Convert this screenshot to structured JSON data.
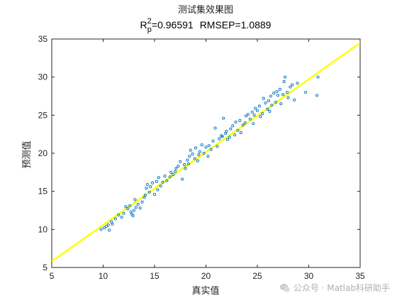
{
  "chart_data": {
    "type": "scatter",
    "title": "测试集效果图",
    "subtitle": {
      "r_symbol": "R",
      "r_sup": "2",
      "r_sub": "p",
      "r_value_text": "=0.96591",
      "rmsep_text": "RMSEP=1.0889"
    },
    "xlabel": "真实值",
    "ylabel": "预测值",
    "xlim": [
      5,
      35
    ],
    "ylim": [
      5,
      35
    ],
    "xticks": [
      5,
      10,
      15,
      20,
      25,
      30,
      35
    ],
    "yticks": [
      5,
      10,
      15,
      20,
      25,
      30,
      35
    ],
    "grid": false,
    "fit_line": {
      "x": [
        5,
        35
      ],
      "y": [
        5.8,
        34.5
      ],
      "color": "#ffff00"
    },
    "marker_color": "#0072bd",
    "points": [
      [
        9.8,
        10.0
      ],
      [
        10.1,
        10.2
      ],
      [
        10.3,
        10.4
      ],
      [
        10.5,
        10.6
      ],
      [
        10.8,
        11.0
      ],
      [
        10.6,
        9.9
      ],
      [
        11.2,
        11.4
      ],
      [
        11.5,
        11.9
      ],
      [
        11.8,
        11.6
      ],
      [
        12.0,
        12.1
      ],
      [
        12.2,
        13.0
      ],
      [
        12.4,
        12.7
      ],
      [
        12.6,
        13.1
      ],
      [
        12.8,
        12.0
      ],
      [
        12.9,
        11.8
      ],
      [
        13.0,
        12.5
      ],
      [
        13.2,
        12.9
      ],
      [
        13.4,
        13.3
      ],
      [
        13.6,
        12.8
      ],
      [
        13.8,
        13.6
      ],
      [
        14.0,
        14.2
      ],
      [
        14.1,
        14.5
      ],
      [
        14.2,
        15.4
      ],
      [
        14.3,
        15.9
      ],
      [
        14.5,
        14.9
      ],
      [
        14.6,
        15.6
      ],
      [
        14.8,
        16.1
      ],
      [
        15.0,
        14.6
      ],
      [
        15.2,
        16.3
      ],
      [
        15.4,
        16.8
      ],
      [
        15.6,
        15.7
      ],
      [
        15.8,
        16.2
      ],
      [
        16.0,
        17.0
      ],
      [
        16.2,
        16.4
      ],
      [
        16.5,
        16.9
      ],
      [
        16.8,
        17.2
      ],
      [
        17.0,
        17.6
      ],
      [
        17.1,
        18.0
      ],
      [
        17.3,
        18.3
      ],
      [
        17.5,
        18.9
      ],
      [
        17.7,
        16.6
      ],
      [
        17.9,
        18.5
      ],
      [
        18.0,
        18.0
      ],
      [
        18.2,
        19.1
      ],
      [
        18.4,
        19.6
      ],
      [
        18.5,
        20.4
      ],
      [
        18.7,
        19.9
      ],
      [
        18.9,
        19.3
      ],
      [
        19.0,
        20.7
      ],
      [
        19.2,
        19.0
      ],
      [
        19.4,
        20.2
      ],
      [
        19.6,
        21.1
      ],
      [
        19.8,
        20.0
      ],
      [
        20.0,
        20.8
      ],
      [
        20.2,
        19.6
      ],
      [
        20.3,
        21.0
      ],
      [
        20.5,
        20.5
      ],
      [
        20.7,
        21.6
      ],
      [
        20.9,
        23.3
      ],
      [
        21.1,
        20.9
      ],
      [
        21.3,
        21.9
      ],
      [
        21.5,
        22.3
      ],
      [
        21.7,
        24.6
      ],
      [
        21.9,
        22.6
      ],
      [
        22.1,
        21.8
      ],
      [
        22.3,
        22.1
      ],
      [
        22.4,
        23.2
      ],
      [
        22.6,
        23.6
      ],
      [
        22.8,
        22.4
      ],
      [
        22.9,
        24.1
      ],
      [
        23.1,
        23.0
      ],
      [
        23.3,
        24.3
      ],
      [
        23.4,
        22.7
      ],
      [
        23.6,
        23.7
      ],
      [
        23.8,
        24.0
      ],
      [
        23.9,
        24.9
      ],
      [
        24.1,
        25.1
      ],
      [
        24.3,
        24.5
      ],
      [
        24.5,
        25.4
      ],
      [
        24.6,
        23.9
      ],
      [
        24.8,
        25.9
      ],
      [
        25.0,
        25.6
      ],
      [
        25.2,
        26.2
      ],
      [
        25.3,
        24.8
      ],
      [
        25.5,
        25.2
      ],
      [
        25.6,
        27.2
      ],
      [
        25.8,
        26.6
      ],
      [
        26.0,
        25.8
      ],
      [
        26.1,
        26.9
      ],
      [
        26.3,
        27.5
      ],
      [
        26.4,
        26.3
      ],
      [
        26.6,
        27.9
      ],
      [
        26.8,
        26.7
      ],
      [
        26.9,
        28.1
      ],
      [
        27.0,
        27.6
      ],
      [
        27.2,
        28.4
      ],
      [
        27.3,
        26.5
      ],
      [
        27.5,
        27.7
      ],
      [
        27.7,
        30.0
      ],
      [
        27.9,
        28.0
      ],
      [
        28.0,
        27.3
      ],
      [
        28.2,
        28.7
      ],
      [
        28.4,
        29.0
      ],
      [
        28.6,
        27.0
      ],
      [
        28.9,
        29.2
      ],
      [
        29.7,
        28.0
      ],
      [
        30.8,
        27.6
      ],
      [
        30.9,
        30.0
      ],
      [
        10.9,
        10.7
      ],
      [
        13.1,
        13.9
      ],
      [
        16.6,
        17.5
      ],
      [
        19.3,
        19.8
      ],
      [
        22.0,
        22.9
      ],
      [
        24.7,
        25.0
      ],
      [
        26.2,
        25.5
      ],
      [
        27.6,
        29.4
      ],
      [
        21.6,
        22.2
      ],
      [
        18.3,
        18.6
      ],
      [
        15.3,
        15.2
      ],
      [
        12.7,
        12.3
      ]
    ]
  },
  "watermark": {
    "text": "公众号 · Matlab科研助手",
    "icon": "wechat-icon"
  }
}
